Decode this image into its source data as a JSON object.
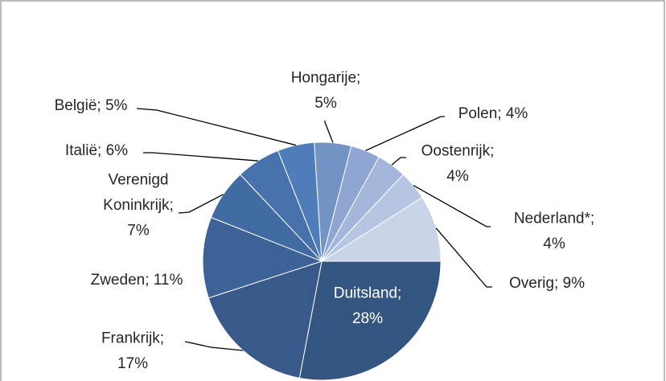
{
  "chart_data": {
    "type": "pie",
    "values": [
      28,
      17,
      11,
      7,
      6,
      5,
      5,
      4,
      4,
      4,
      9
    ],
    "value_labels": [
      "Duitsland; 28%",
      "Frankrijk; 17%",
      "Zweden; 11%",
      "Verenigd Koninkrijk; 7%",
      "Italië; 6%",
      "België; 5%",
      "Hongarije; 5%",
      "Polen; 4%",
      "Oostenrijk; 4%",
      "Nederland*; 4%",
      "Overig; 9%"
    ],
    "colors": [
      "#34557f",
      "#38598a",
      "#3c6297",
      "#416ba3",
      "#4772ac",
      "#4e7db9",
      "#7393c5",
      "#8ea6d1",
      "#a4b6da",
      "#b6c5e2",
      "#c9d4e8"
    ]
  }
}
